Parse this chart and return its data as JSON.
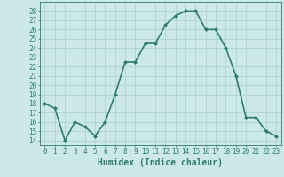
{
  "x": [
    0,
    1,
    2,
    3,
    4,
    5,
    6,
    7,
    8,
    9,
    10,
    11,
    12,
    13,
    14,
    15,
    16,
    17,
    18,
    19,
    20,
    21,
    22,
    23
  ],
  "y": [
    18,
    17.5,
    14,
    16,
    15.5,
    14.5,
    16,
    19,
    22.5,
    22.5,
    24.5,
    24.5,
    26.5,
    27.5,
    28,
    28,
    26,
    26,
    24,
    21,
    16.5,
    16.5,
    15,
    14.5
  ],
  "line_color": "#2e7d6e",
  "marker": "D",
  "marker_size": 2,
  "bg_color": "#cce8e8",
  "grid_color": "#aacece",
  "xlim": [
    -0.5,
    23.5
  ],
  "ylim": [
    13.5,
    29
  ],
  "yticks": [
    14,
    15,
    16,
    17,
    18,
    19,
    20,
    21,
    22,
    23,
    24,
    25,
    26,
    27,
    28
  ],
  "xticks": [
    0,
    1,
    2,
    3,
    4,
    5,
    6,
    7,
    8,
    9,
    10,
    11,
    12,
    13,
    14,
    15,
    16,
    17,
    18,
    19,
    20,
    21,
    22,
    23
  ],
  "xlabel": "Humidex (Indice chaleur)",
  "xlabel_fontsize": 7,
  "tick_fontsize": 5.5,
  "line_width": 1.2
}
